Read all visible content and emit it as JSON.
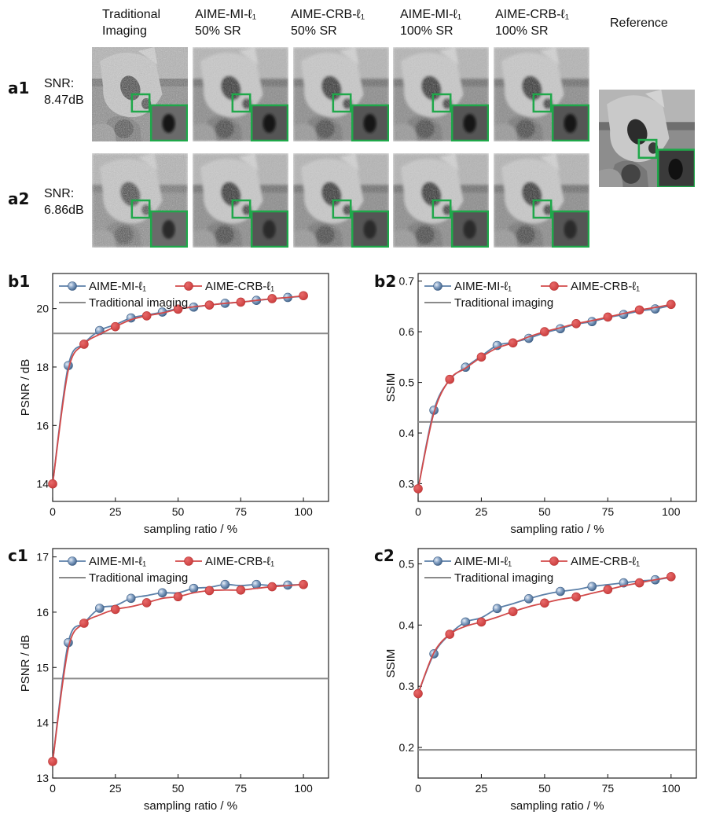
{
  "column_headers": [
    {
      "line1": "Traditional",
      "line2": "Imaging"
    },
    {
      "line1": "AIME-MI-ℓ₁",
      "line2": "50% SR"
    },
    {
      "line1": "AIME-CRB-ℓ₁",
      "line2": "50% SR"
    },
    {
      "line1": "AIME-MI-ℓ₁",
      "line2": "100% SR"
    },
    {
      "line1": "AIME-CRB-ℓ₁",
      "line2": "100% SR"
    },
    {
      "line1": "Reference",
      "line2": ""
    }
  ],
  "rows": [
    {
      "label": "a1",
      "snr_label": "SNR:",
      "snr_value": "8.47dB"
    },
    {
      "label": "a2",
      "snr_label": "SNR:",
      "snr_value": "6.86dB"
    }
  ],
  "colors": {
    "mi_series": "#5b7fa8",
    "crb_series": "#d24a4a",
    "traditional_line": "#8a8a8a",
    "zoom_box": "#1fa84a"
  },
  "chart_data": [
    {
      "id": "b1",
      "type": "line",
      "xlabel": "sampling ratio / %",
      "ylabel": "PSNR / dB",
      "xlim": [
        0,
        110
      ],
      "ylim": [
        13.4,
        21.2
      ],
      "xticks": [
        0,
        25,
        50,
        75,
        100
      ],
      "yticks": [
        14,
        16,
        18,
        20
      ],
      "baseline": {
        "name": "Traditional imaging",
        "value": 19.15
      },
      "series": [
        {
          "name": "AIME-MI-ℓ₁",
          "x": [
            0,
            6.25,
            12.5,
            18.75,
            25,
            31.25,
            37.5,
            43.75,
            50,
            56.25,
            62.5,
            68.75,
            75,
            81.25,
            87.5,
            93.75,
            100
          ],
          "y": [
            14.0,
            18.05,
            18.8,
            19.25,
            19.45,
            19.68,
            19.78,
            19.88,
            20.0,
            20.05,
            20.12,
            20.18,
            20.22,
            20.28,
            20.33,
            20.38,
            20.42
          ],
          "markers_x": [
            6.25,
            18.75,
            31.25,
            43.75,
            56.25,
            68.75,
            81.25,
            93.75
          ]
        },
        {
          "name": "AIME-CRB-ℓ₁",
          "x": [
            0,
            6.25,
            12.5,
            18.75,
            25,
            31.25,
            37.5,
            43.75,
            50,
            56.25,
            62.5,
            68.75,
            75,
            81.25,
            87.5,
            93.75,
            100
          ],
          "y": [
            14.0,
            17.9,
            18.78,
            19.12,
            19.38,
            19.62,
            19.75,
            19.85,
            19.98,
            20.06,
            20.12,
            20.18,
            20.22,
            20.28,
            20.34,
            20.38,
            20.44
          ],
          "markers_x": [
            0,
            12.5,
            25,
            37.5,
            50,
            62.5,
            75,
            87.5,
            100
          ]
        }
      ]
    },
    {
      "id": "b2",
      "type": "line",
      "xlabel": "sampling ratio / %",
      "ylabel": "SSIM",
      "xlim": [
        0,
        110
      ],
      "ylim": [
        0.265,
        0.715
      ],
      "xticks": [
        0,
        25,
        50,
        75,
        100
      ],
      "yticks": [
        0.3,
        0.4,
        0.5,
        0.6,
        0.7
      ],
      "baseline": {
        "name": "Traditional imaging",
        "value": 0.422
      },
      "series": [
        {
          "name": "AIME-MI-ℓ₁",
          "x": [
            0,
            6.25,
            12.5,
            18.75,
            25,
            31.25,
            37.5,
            43.75,
            50,
            56.25,
            62.5,
            68.75,
            75,
            81.25,
            87.5,
            93.75,
            100
          ],
          "y": [
            0.29,
            0.445,
            0.505,
            0.53,
            0.552,
            0.573,
            0.579,
            0.587,
            0.598,
            0.606,
            0.615,
            0.62,
            0.628,
            0.634,
            0.641,
            0.645,
            0.652
          ],
          "markers_x": [
            6.25,
            18.75,
            31.25,
            43.75,
            56.25,
            68.75,
            81.25,
            93.75
          ]
        },
        {
          "name": "AIME-CRB-ℓ₁",
          "x": [
            0,
            6.25,
            12.5,
            18.75,
            25,
            31.25,
            37.5,
            43.75,
            50,
            56.25,
            62.5,
            68.75,
            75,
            81.25,
            87.5,
            93.75,
            100
          ],
          "y": [
            0.29,
            0.44,
            0.506,
            0.528,
            0.55,
            0.568,
            0.578,
            0.59,
            0.6,
            0.608,
            0.616,
            0.622,
            0.629,
            0.636,
            0.643,
            0.648,
            0.654
          ],
          "markers_x": [
            0,
            12.5,
            25,
            37.5,
            50,
            62.5,
            75,
            87.5,
            100
          ]
        }
      ]
    },
    {
      "id": "c1",
      "type": "line",
      "xlabel": "sampling ratio / %",
      "ylabel": "PSNR / dB",
      "xlim": [
        0,
        110
      ],
      "ylim": [
        13.0,
        17.15
      ],
      "xticks": [
        0,
        25,
        50,
        75,
        100
      ],
      "yticks": [
        13,
        14,
        15,
        16,
        17
      ],
      "baseline": {
        "name": "Traditional imaging",
        "value": 14.8
      },
      "series": [
        {
          "name": "AIME-MI-ℓ₁",
          "x": [
            0,
            6.25,
            12.5,
            18.75,
            25,
            31.25,
            37.5,
            43.75,
            50,
            56.25,
            62.5,
            68.75,
            75,
            81.25,
            87.5,
            93.75,
            100
          ],
          "y": [
            13.3,
            15.45,
            15.8,
            16.07,
            16.12,
            16.25,
            16.3,
            16.35,
            16.35,
            16.43,
            16.45,
            16.5,
            16.48,
            16.5,
            16.48,
            16.49,
            16.5
          ],
          "markers_x": [
            6.25,
            18.75,
            31.25,
            43.75,
            56.25,
            68.75,
            81.25,
            93.75
          ]
        },
        {
          "name": "AIME-CRB-ℓ₁",
          "x": [
            0,
            6.25,
            12.5,
            18.75,
            25,
            31.25,
            37.5,
            43.75,
            50,
            56.25,
            62.5,
            68.75,
            75,
            81.25,
            87.5,
            93.75,
            100
          ],
          "y": [
            13.3,
            15.35,
            15.8,
            15.95,
            16.05,
            16.1,
            16.17,
            16.25,
            16.28,
            16.35,
            16.39,
            16.4,
            16.4,
            16.43,
            16.46,
            16.48,
            16.5
          ],
          "markers_x": [
            0,
            12.5,
            25,
            37.5,
            50,
            62.5,
            75,
            87.5,
            100
          ]
        }
      ]
    },
    {
      "id": "c2",
      "type": "line",
      "xlabel": "sampling ratio / %",
      "ylabel": "SSIM",
      "xlim": [
        0,
        110
      ],
      "ylim": [
        0.15,
        0.525
      ],
      "xticks": [
        0,
        25,
        50,
        75,
        100
      ],
      "yticks": [
        0.2,
        0.3,
        0.4,
        0.5
      ],
      "baseline": {
        "name": "Traditional imaging",
        "value": 0.196
      },
      "series": [
        {
          "name": "AIME-MI-ℓ₁",
          "x": [
            0,
            6.25,
            12.5,
            18.75,
            25,
            31.25,
            37.5,
            43.75,
            50,
            56.25,
            62.5,
            68.75,
            75,
            81.25,
            87.5,
            93.75,
            100
          ],
          "y": [
            0.288,
            0.353,
            0.385,
            0.405,
            0.412,
            0.427,
            0.435,
            0.443,
            0.45,
            0.455,
            0.458,
            0.463,
            0.466,
            0.469,
            0.472,
            0.474,
            0.478
          ],
          "markers_x": [
            6.25,
            18.75,
            31.25,
            43.75,
            56.25,
            68.75,
            81.25,
            93.75
          ]
        },
        {
          "name": "AIME-CRB-ℓ₁",
          "x": [
            0,
            6.25,
            12.5,
            18.75,
            25,
            31.25,
            37.5,
            43.75,
            50,
            56.25,
            62.5,
            68.75,
            75,
            81.25,
            87.5,
            93.75,
            100
          ],
          "y": [
            0.288,
            0.355,
            0.385,
            0.398,
            0.405,
            0.413,
            0.422,
            0.43,
            0.436,
            0.442,
            0.446,
            0.452,
            0.458,
            0.464,
            0.469,
            0.474,
            0.479
          ],
          "markers_x": [
            0,
            12.5,
            25,
            37.5,
            50,
            62.5,
            75,
            87.5,
            100
          ]
        }
      ]
    }
  ]
}
